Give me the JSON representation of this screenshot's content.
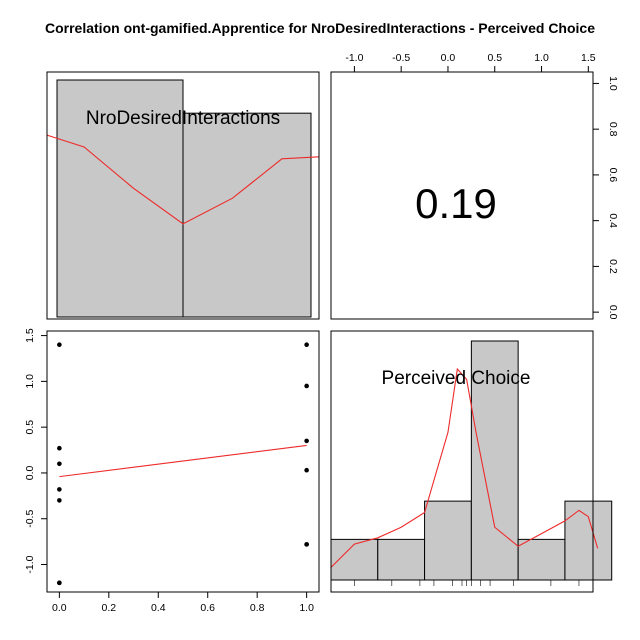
{
  "chart_data": {
    "type": "correlation-matrix",
    "title": "Correlation ont-gamified.Apprentice for NroDesiredInteractions - Perceived Choice",
    "variables": [
      "NroDesiredInteractions",
      "Perceived Choice"
    ],
    "correlation": "0.19",
    "colors": {
      "bar": "#c8c8c8",
      "curve": "#ee2a2a",
      "point": "#000000"
    },
    "histogram_1": {
      "variable": "NroDesiredInteractions",
      "bins": [
        [
          -0.05,
          0.5
        ],
        [
          0.5,
          1.05
        ]
      ],
      "heights": [
        1.0,
        0.86
      ],
      "density_curve": [
        [
          -0.05,
          0.72
        ],
        [
          0.1,
          0.66
        ],
        [
          0.3,
          0.45
        ],
        [
          0.5,
          0.27
        ],
        [
          0.7,
          0.4
        ],
        [
          0.9,
          0.6
        ],
        [
          1.05,
          0.61
        ]
      ]
    },
    "histogram_2": {
      "variable": "Perceived Choice",
      "bins": [
        [
          -1.25,
          -0.75
        ],
        [
          -0.75,
          -0.25
        ],
        [
          -0.25,
          0.25
        ],
        [
          0.25,
          0.75
        ],
        [
          0.75,
          1.25
        ],
        [
          1.25,
          1.75
        ]
      ],
      "heights": [
        0.17,
        0.17,
        0.33,
        1.0,
        0.17,
        0.33
      ],
      "density_curve": [
        [
          -1.25,
          0.06
        ],
        [
          -1.0,
          0.17
        ],
        [
          -0.75,
          0.2
        ],
        [
          -0.5,
          0.25
        ],
        [
          -0.25,
          0.32
        ],
        [
          0.0,
          0.7
        ],
        [
          0.1,
          1.0
        ],
        [
          0.2,
          0.95
        ],
        [
          0.3,
          0.7
        ],
        [
          0.5,
          0.25
        ],
        [
          0.75,
          0.16
        ],
        [
          1.0,
          0.22
        ],
        [
          1.25,
          0.28
        ],
        [
          1.4,
          0.33
        ],
        [
          1.5,
          0.3
        ],
        [
          1.6,
          0.15
        ]
      ],
      "rug": [
        -1.0,
        -0.6,
        -0.3,
        -0.15,
        0.05,
        0.15,
        0.2,
        0.25,
        0.35,
        0.45,
        0.7,
        1.1,
        1.4
      ]
    },
    "scatter": {
      "x": [
        0,
        0,
        0,
        0,
        0,
        0,
        0,
        1,
        1,
        1,
        1,
        1,
        1
      ],
      "y": [
        1.4,
        0.27,
        0.1,
        -0.18,
        -0.3,
        -1.2,
        -1.2,
        1.4,
        0.95,
        0.35,
        0.03,
        -0.78,
        -0.78
      ],
      "fit_line": [
        [
          0,
          -0.04
        ],
        [
          1,
          0.3
        ]
      ]
    },
    "axes": {
      "bottom": {
        "range": [
          -0.05,
          1.05
        ],
        "ticks": [
          "0.0",
          "0.2",
          "0.4",
          "0.6",
          "0.8",
          "1.0"
        ]
      },
      "left": {
        "range": [
          -1.3,
          1.55
        ],
        "ticks": [
          "-1.0",
          "-0.5",
          "0.0",
          "0.5",
          "1.0",
          "1.5"
        ]
      },
      "top": {
        "range": [
          -1.25,
          1.55
        ],
        "ticks": [
          "-1.0",
          "-0.5",
          "0.0",
          "0.5",
          "1.0",
          "1.5"
        ]
      },
      "right": {
        "range": [
          -0.03,
          1.05
        ],
        "ticks": [
          "0.0",
          "0.2",
          "0.4",
          "0.6",
          "0.8",
          "1.0"
        ]
      }
    }
  }
}
